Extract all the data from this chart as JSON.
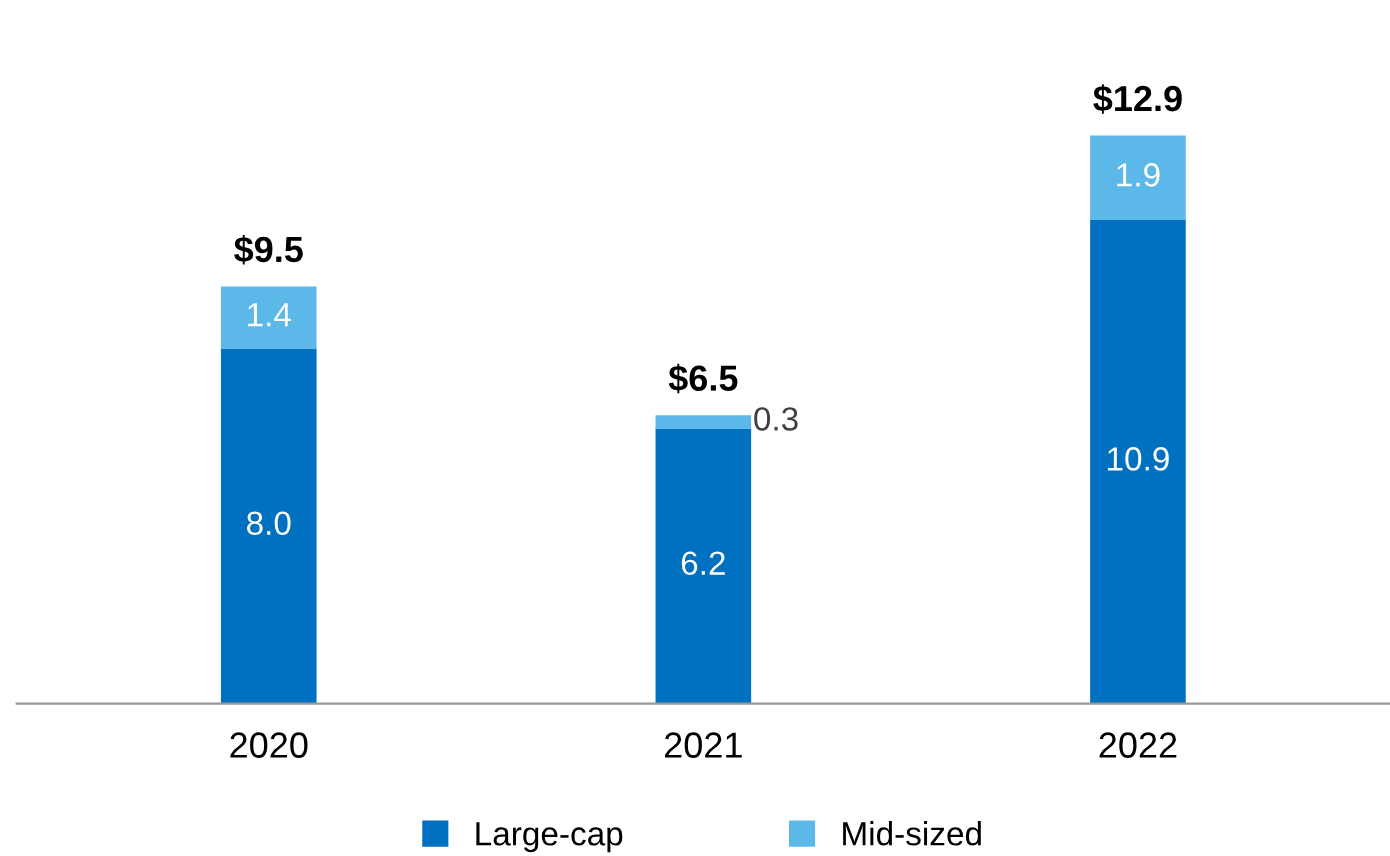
{
  "chart_data": {
    "type": "bar",
    "stacked": true,
    "categories": [
      "2020",
      "2021",
      "2022"
    ],
    "series": [
      {
        "name": "Large-cap",
        "color": "#0070c0",
        "values": [
          8.0,
          6.2,
          10.9
        ],
        "value_labels": [
          "8.0",
          "6.2",
          "10.9"
        ]
      },
      {
        "name": "Mid-sized",
        "color": "#5bb8e8",
        "values": [
          1.4,
          0.3,
          1.9
        ],
        "value_labels": [
          "1.4",
          "0.3",
          "1.9"
        ]
      }
    ],
    "totals": [
      "$9.5",
      "$6.5",
      "$12.9"
    ],
    "legend": "bottom",
    "grid": false,
    "tick_labels": "x"
  }
}
